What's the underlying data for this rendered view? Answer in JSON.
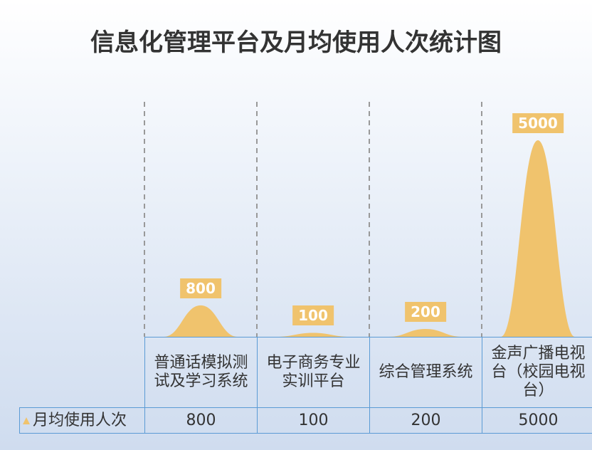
{
  "chart_data": {
    "type": "bar",
    "title": "信息化管理平台及月均使用人次统计图",
    "categories": [
      "普通话模拟测试及学习系统",
      "电子商务专业实训平台",
      "综合管理系统",
      "金声广播电视台（校园电视台）"
    ],
    "series": [
      {
        "name": "月均使用人次",
        "color": "#f0c36d",
        "values": [
          800,
          100,
          200,
          5000
        ]
      }
    ]
  }
}
